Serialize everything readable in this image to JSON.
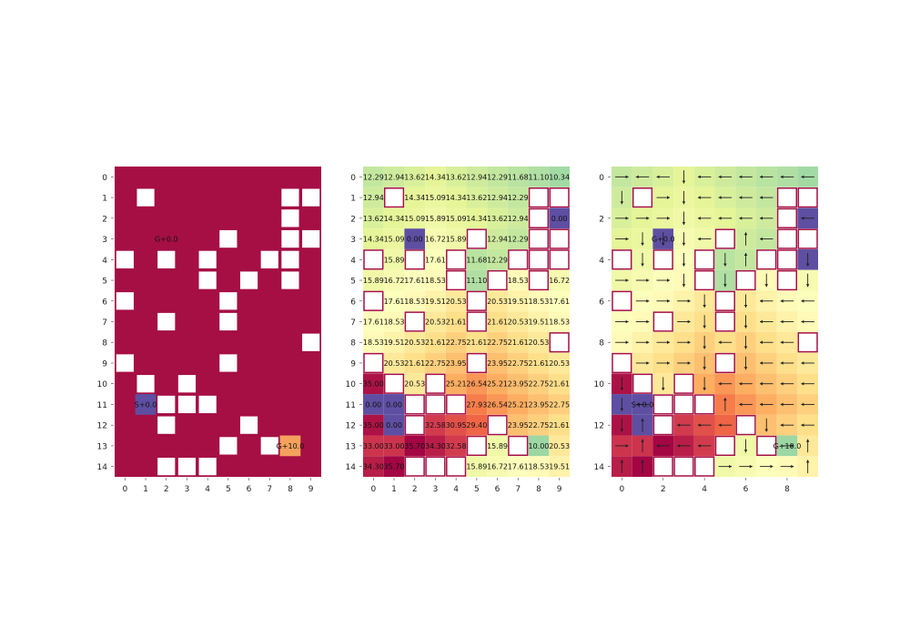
{
  "palette": {
    "wall": "#a50f44",
    "cmap": [
      "#5e4fa2",
      "#3288bd",
      "#66c2a5",
      "#abdda4",
      "#e6f598",
      "#ffffbf",
      "#fee08b",
      "#fdae61",
      "#f46d43",
      "#d53e4f",
      "#9e0142"
    ]
  },
  "chart_data": [
    {
      "type": "heatmap",
      "title": "",
      "rows": 15,
      "cols": 10,
      "x_ticks": [
        "0",
        "1",
        "2",
        "3",
        "4",
        "5",
        "6",
        "7",
        "8",
        "9"
      ],
      "y_ticks": [
        "0",
        "1",
        "2",
        "3",
        "4",
        "5",
        "6",
        "7",
        "8",
        "9",
        "10",
        "11",
        "12",
        "13",
        "14"
      ],
      "background": "wall",
      "obstacles": [
        [
          1,
          1
        ],
        [
          1,
          8
        ],
        [
          1,
          9
        ],
        [
          2,
          8
        ],
        [
          3,
          5
        ],
        [
          3,
          8
        ],
        [
          3,
          9
        ],
        [
          4,
          0
        ],
        [
          4,
          2
        ],
        [
          4,
          4
        ],
        [
          4,
          7
        ],
        [
          4,
          8
        ],
        [
          5,
          4
        ],
        [
          5,
          6
        ],
        [
          5,
          8
        ],
        [
          6,
          0
        ],
        [
          6,
          5
        ],
        [
          7,
          2
        ],
        [
          7,
          5
        ],
        [
          8,
          9
        ],
        [
          9,
          0
        ],
        [
          9,
          5
        ],
        [
          10,
          1
        ],
        [
          10,
          3
        ],
        [
          11,
          2
        ],
        [
          11,
          3
        ],
        [
          11,
          4
        ],
        [
          12,
          2
        ],
        [
          12,
          6
        ],
        [
          13,
          5
        ],
        [
          13,
          7
        ],
        [
          14,
          2
        ],
        [
          14,
          3
        ],
        [
          14,
          4
        ]
      ],
      "special_cells": [
        {
          "row": 3,
          "col": 2,
          "label": "G+0.0",
          "color": "#a50f44"
        },
        {
          "row": 11,
          "col": 1,
          "label": "S+0.0",
          "color": "#5e4fa2"
        },
        {
          "row": 13,
          "col": 8,
          "label": "G+10.0",
          "color": "#f4a15d"
        }
      ]
    },
    {
      "type": "heatmap",
      "title": "",
      "rows": 15,
      "cols": 10,
      "x_ticks": [
        "0",
        "1",
        "2",
        "3",
        "4",
        "5",
        "6",
        "7",
        "8",
        "9"
      ],
      "y_ticks": [
        "0",
        "1",
        "2",
        "3",
        "4",
        "5",
        "6",
        "7",
        "8",
        "9",
        "10",
        "11",
        "12",
        "13",
        "14"
      ],
      "value_range": [
        0,
        36
      ],
      "values": [
        [
          "12.29",
          "12.94",
          "13.62",
          "14.34",
          "13.62",
          "12.94",
          "12.29",
          "11.68",
          "11.10",
          "10.34"
        ],
        [
          "12.94",
          "",
          "14.34",
          "15.09",
          "14.34",
          "13.62",
          "12.94",
          "12.29",
          "",
          ""
        ],
        [
          "13.62",
          "14.34",
          "15.09",
          "15.89",
          "15.09",
          "14.34",
          "13.62",
          "12.94",
          "",
          "0.00"
        ],
        [
          "14.34",
          "15.09",
          "0.00",
          "16.72",
          "15.89",
          "",
          "12.94",
          "12.29",
          "",
          ""
        ],
        [
          "",
          "15.89",
          "",
          "17.61",
          "",
          "11.68",
          "12.29",
          "",
          "",
          ""
        ],
        [
          "15.89",
          "16.72",
          "17.61",
          "18.53",
          "",
          "11.10",
          "",
          "18.53",
          "",
          "16.72"
        ],
        [
          "",
          "17.61",
          "18.53",
          "19.51",
          "20.53",
          "",
          "20.53",
          "19.51",
          "18.53",
          "17.61"
        ],
        [
          "17.61",
          "18.53",
          "",
          "20.53",
          "21.61",
          "",
          "21.61",
          "20.53",
          "19.51",
          "18.53"
        ],
        [
          "18.53",
          "19.51",
          "20.53",
          "21.61",
          "22.75",
          "21.61",
          "22.75",
          "21.61",
          "20.53",
          ""
        ],
        [
          "",
          "20.53",
          "21.61",
          "22.75",
          "23.95",
          "",
          "23.95",
          "22.75",
          "21.61",
          "20.53"
        ],
        [
          "35.00",
          "",
          "20.53",
          "",
          "25.21",
          "26.54",
          "25.21",
          "23.95",
          "22.75",
          "21.61"
        ],
        [
          "0.00",
          "0.00",
          "",
          "",
          "",
          "27.93",
          "26.54",
          "25.21",
          "23.95",
          "22.75"
        ],
        [
          "35.00",
          "0.00",
          "",
          "32.58",
          "30.95",
          "29.40",
          "",
          "23.95",
          "22.75",
          "21.61"
        ],
        [
          "33.00",
          "33.00",
          "35.70",
          "34.30",
          "32.58",
          "",
          "15.89",
          "",
          "10.00",
          "20.53"
        ],
        [
          "34.30",
          "35.70",
          "",
          "",
          "",
          "15.89",
          "16.72",
          "17.61",
          "18.53",
          "19.51"
        ]
      ]
    },
    {
      "type": "heatmap",
      "title": "",
      "rows": 15,
      "cols": 10,
      "x_ticks": [
        "0",
        "2",
        "4",
        "6",
        "8"
      ],
      "y_ticks": [
        "0",
        "2",
        "4",
        "6",
        "8",
        "10",
        "12",
        "14"
      ],
      "value_range": [
        0,
        36
      ],
      "special_cells": [
        {
          "row": 3,
          "col": 2,
          "label": "G+0.0"
        },
        {
          "row": 11,
          "col": 1,
          "label": "S+0.0"
        },
        {
          "row": 13,
          "col": 8,
          "label": "G+10.0"
        }
      ],
      "policy": [
        [
          "R",
          "L",
          "L",
          "D",
          "L",
          "L",
          "L",
          "L",
          "L",
          "L"
        ],
        [
          "D",
          "W",
          "R",
          "D",
          "L",
          "L",
          "L",
          "L",
          "W",
          "W"
        ],
        [
          "R",
          "R",
          "R",
          "D",
          "L",
          "L",
          "L",
          "L",
          "W",
          "L"
        ],
        [
          "R",
          "D",
          "D",
          "D",
          "L",
          "W",
          "U",
          "L",
          "W",
          "W"
        ],
        [
          "W",
          "D",
          "W",
          "D",
          "W",
          "D",
          "U",
          "W",
          "W",
          "D"
        ],
        [
          "R",
          "R",
          "R",
          "D",
          "W",
          "D",
          "W",
          "D",
          "W",
          "D"
        ],
        [
          "W",
          "R",
          "R",
          "R",
          "D",
          "W",
          "D",
          "L",
          "L",
          "L"
        ],
        [
          "R",
          "R",
          "W",
          "R",
          "D",
          "W",
          "D",
          "L",
          "L",
          "L"
        ],
        [
          "R",
          "R",
          "R",
          "R",
          "D",
          "L",
          "D",
          "L",
          "L",
          "W"
        ],
        [
          "W",
          "R",
          "R",
          "R",
          "D",
          "W",
          "D",
          "L",
          "L",
          "L"
        ],
        [
          "D",
          "W",
          "D",
          "W",
          "D",
          "L",
          "L",
          "L",
          "L",
          "L"
        ],
        [
          "D",
          "L",
          "W",
          "W",
          "W",
          "U",
          "L",
          "L",
          "L",
          "L"
        ],
        [
          "D",
          "U",
          "W",
          "L",
          "L",
          "L",
          "W",
          "D",
          "L",
          "L"
        ],
        [
          "R",
          "U",
          "L",
          "L",
          "L",
          "W",
          "D",
          "W",
          "R",
          "U"
        ],
        [
          "U",
          "U",
          "W",
          "W",
          "W",
          "R",
          "R",
          "R",
          "R",
          "U"
        ]
      ]
    }
  ]
}
